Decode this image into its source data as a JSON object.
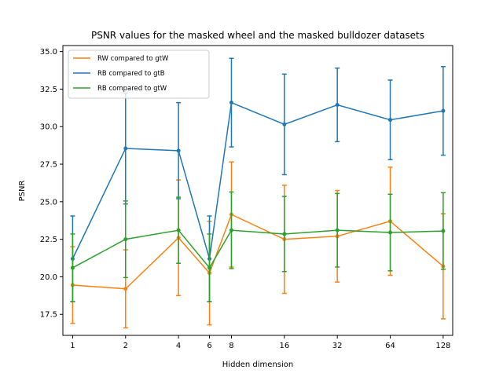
{
  "chart_data": {
    "type": "line",
    "title": "PSNR values for the masked wheel and the masked bulldozer datasets",
    "xlabel": "Hidden dimension",
    "ylabel": "PSNR",
    "xscale": "log2",
    "x": [
      1,
      2,
      4,
      6,
      8,
      16,
      32,
      64,
      128
    ],
    "x_tick_labels": [
      "1",
      "2",
      "4",
      "6",
      "8",
      "16",
      "32",
      "64",
      "128"
    ],
    "ylim": [
      16.1,
      35.4
    ],
    "y_ticks": [
      17.5,
      20.0,
      22.5,
      25.0,
      27.5,
      30.0,
      32.5,
      35.0
    ],
    "y_tick_labels": [
      "17.5",
      "20.0",
      "22.5",
      "25.0",
      "27.5",
      "30.0",
      "32.5",
      "35.0"
    ],
    "grid": false,
    "legend_position": "top-left",
    "series": [
      {
        "name": "RW compared to gtW",
        "color": "#ff7f0e",
        "values": [
          19.45,
          19.2,
          22.6,
          20.25,
          24.15,
          22.5,
          22.7,
          23.7,
          20.7
        ],
        "error": [
          2.55,
          2.6,
          3.85,
          3.45,
          3.5,
          3.6,
          3.05,
          3.6,
          3.5
        ]
      },
      {
        "name": "RB compared to gtB",
        "color": "#1f77b4",
        "values": [
          21.2,
          28.55,
          28.4,
          21.2,
          31.6,
          30.15,
          31.45,
          30.45,
          31.05
        ],
        "error": [
          2.85,
          3.7,
          3.2,
          2.85,
          2.95,
          3.35,
          2.45,
          2.65,
          2.95
        ]
      },
      {
        "name": "RB compared to gtW",
        "color": "#2ca02c",
        "values": [
          20.6,
          22.5,
          23.1,
          20.6,
          23.1,
          22.85,
          23.1,
          22.95,
          23.05
        ],
        "error": [
          2.25,
          2.55,
          2.2,
          2.25,
          2.55,
          2.5,
          2.45,
          2.55,
          2.55
        ]
      }
    ]
  }
}
